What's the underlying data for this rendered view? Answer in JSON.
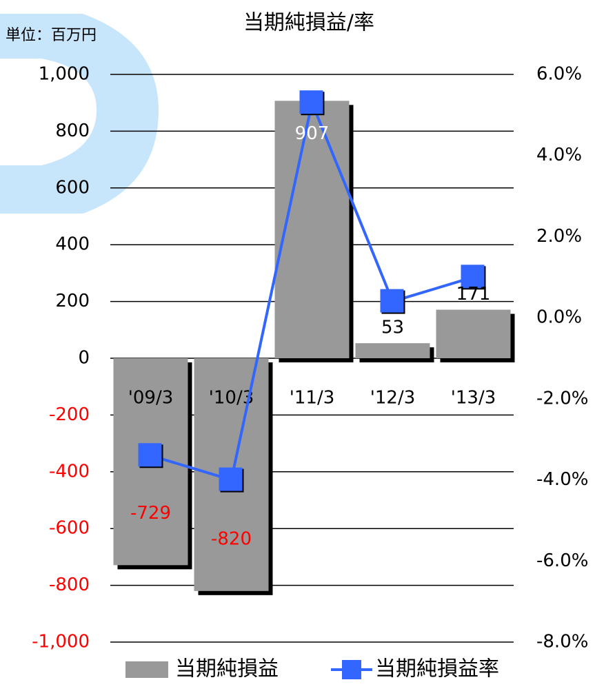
{
  "chart_data": {
    "type": "bar",
    "title": "当期純損益/率",
    "unit_label": "単位：百万円",
    "categories": [
      "'09/3",
      "'10/3",
      "'11/3",
      "'12/3",
      "'13/3"
    ],
    "series": [
      {
        "name": "当期純損益",
        "color": "#999999",
        "values": [
          -729,
          -820,
          907,
          53,
          171
        ]
      },
      {
        "name": "当期純損益率",
        "color": "#3366ff",
        "type": "line",
        "axis": "y2",
        "values": [
          -3.4,
          -4.0,
          5.3,
          0.4,
          1.0
        ]
      }
    ],
    "ylim": [
      -1000,
      1000
    ],
    "yticks": [
      {
        "value": 1000,
        "label": "1,000"
      },
      800,
      600,
      400,
      200,
      0,
      -200,
      -400,
      -600,
      -800,
      {
        "value": -1000,
        "label": "-1,000"
      }
    ],
    "y2lim": [
      -8,
      6
    ],
    "y2ticks": [
      {
        "value": 6,
        "label": "6.0%"
      },
      {
        "value": 4,
        "label": "4.0%"
      },
      {
        "value": 2,
        "label": "2.0%"
      },
      {
        "value": 0,
        "label": "0.0%"
      },
      {
        "value": -2,
        "label": "-2.0%"
      },
      {
        "value": -4,
        "label": "-4.0%"
      },
      {
        "value": -6,
        "label": "-6.0%"
      },
      {
        "value": -8,
        "label": "-8.0%"
      }
    ],
    "negative_color": "#ff0000",
    "grid": true,
    "legend": "bottom"
  }
}
